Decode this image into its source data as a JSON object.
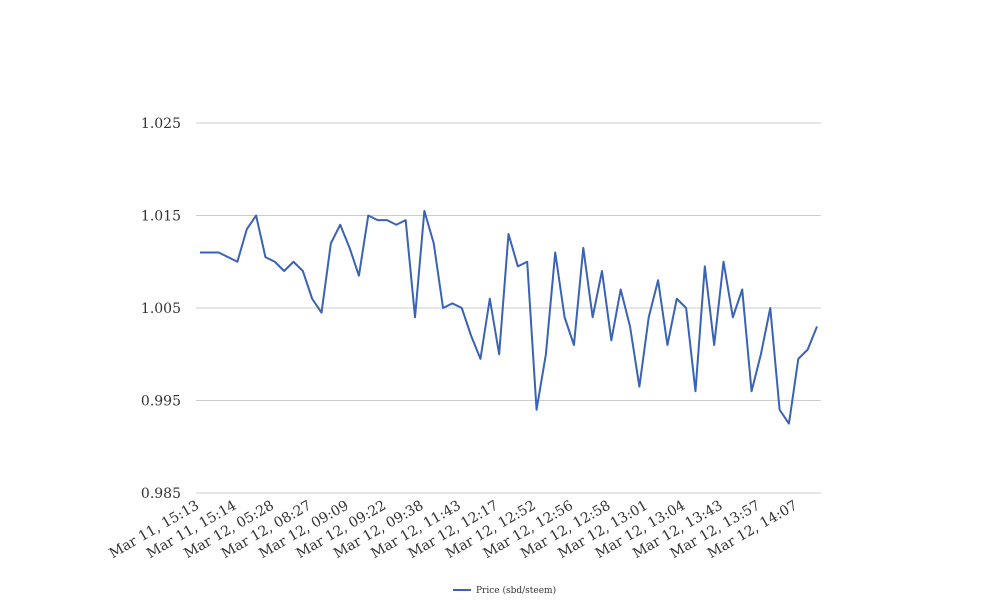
{
  "chart_data": {
    "type": "line",
    "categories": [
      "Mar 11, 15:13",
      null,
      null,
      null,
      "Mar 11, 15:14",
      null,
      null,
      null,
      "Mar 12, 05:28",
      null,
      null,
      null,
      "Mar 12, 08:27",
      null,
      null,
      null,
      "Mar 12, 09:09",
      null,
      null,
      null,
      "Mar 12, 09:22",
      null,
      null,
      null,
      "Mar 12, 09:38",
      null,
      null,
      null,
      "Mar 12, 11:43",
      null,
      null,
      null,
      "Mar 12, 12:17",
      null,
      null,
      null,
      "Mar 12, 12:52",
      null,
      null,
      null,
      "Mar 12, 12:56",
      null,
      null,
      null,
      "Mar 12, 12:58",
      null,
      null,
      null,
      "Mar 12, 13:01",
      null,
      null,
      null,
      "Mar 12, 13:04",
      null,
      null,
      null,
      "Mar 12, 13:43",
      null,
      null,
      null,
      "Mar 12, 13:57",
      null,
      null,
      null,
      "Mar 12, 14:07",
      null,
      null
    ],
    "series": [
      {
        "name": "Price (sbd/steem)",
        "color": "#3a62b5",
        "values": [
          1.011,
          1.011,
          1.011,
          1.0105,
          1.01,
          1.0135,
          1.015,
          1.0105,
          1.01,
          1.009,
          1.01,
          1.009,
          1.006,
          1.0045,
          1.012,
          1.014,
          1.0115,
          1.0085,
          1.015,
          1.0145,
          1.0145,
          1.014,
          1.0145,
          1.004,
          1.0155,
          1.012,
          1.005,
          1.0055,
          1.005,
          1.002,
          0.9995,
          1.006,
          1.0,
          1.013,
          1.0095,
          1.01,
          0.994,
          1.0,
          1.011,
          1.004,
          1.001,
          1.0115,
          1.004,
          1.009,
          1.0015,
          1.007,
          1.003,
          0.9965,
          1.004,
          1.008,
          1.001,
          1.006,
          1.005,
          0.996,
          1.0095,
          1.001,
          1.01,
          1.004,
          1.007,
          0.996,
          1.0,
          1.005,
          0.994,
          0.9925,
          0.9995,
          1.0005,
          1.003
        ]
      }
    ],
    "ylim": [
      0.985,
      1.025
    ],
    "yticks": [
      0.985,
      0.995,
      1.005,
      1.015,
      1.025
    ],
    "grid": true,
    "legend": "bottom"
  }
}
